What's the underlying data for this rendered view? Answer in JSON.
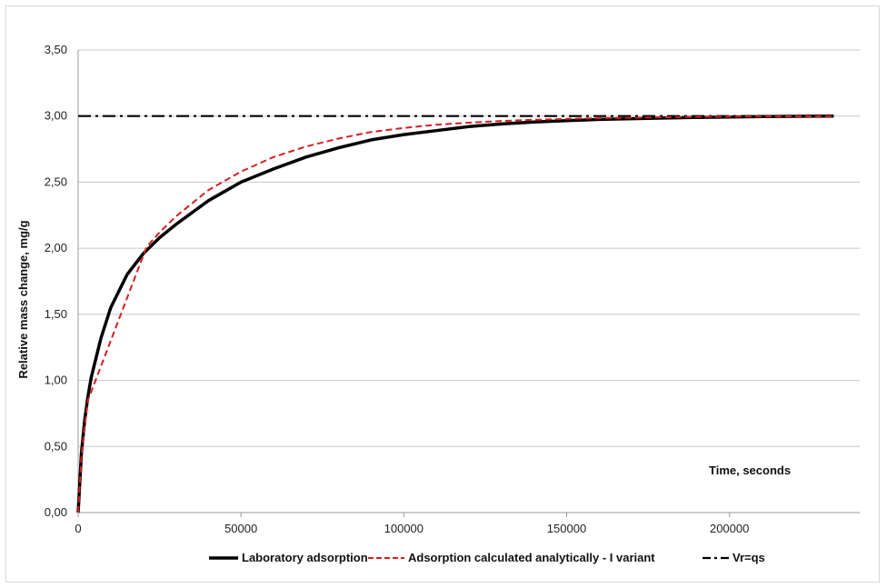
{
  "chart_data": {
    "type": "line",
    "title": "",
    "xlabel": "Time, seconds",
    "ylabel": "Relative mass change, mg/g",
    "xlim": [
      0,
      240000
    ],
    "ylim": [
      0,
      3.5
    ],
    "x_ticks": [
      0,
      50000,
      100000,
      150000,
      200000
    ],
    "x_tick_labels": [
      "0",
      "50000",
      "100000",
      "150000",
      "200000"
    ],
    "y_ticks": [
      0,
      0.5,
      1.0,
      1.5,
      2.0,
      2.5,
      3.0,
      3.5
    ],
    "y_tick_labels": [
      "0,00",
      "0,50",
      "1,00",
      "1,50",
      "2,00",
      "2,50",
      "3,00",
      "3,50"
    ],
    "grid": "horizontal",
    "legend_position": "bottom",
    "series": [
      {
        "name": "Laboratory adsorption",
        "color": "#000000",
        "style": "solid",
        "x": [
          0,
          1000,
          2000,
          3000,
          4000,
          5000,
          7000,
          10000,
          15000,
          20000,
          25000,
          30000,
          40000,
          50000,
          60000,
          70000,
          80000,
          90000,
          100000,
          110000,
          120000,
          130000,
          140000,
          150000,
          160000,
          170000,
          180000,
          190000,
          200000,
          210000,
          220000,
          232000
        ],
        "y": [
          0,
          0.45,
          0.7,
          0.88,
          1.02,
          1.12,
          1.32,
          1.55,
          1.8,
          1.96,
          2.08,
          2.18,
          2.36,
          2.5,
          2.6,
          2.69,
          2.76,
          2.82,
          2.86,
          2.89,
          2.92,
          2.94,
          2.955,
          2.965,
          2.975,
          2.98,
          2.985,
          2.99,
          2.993,
          2.996,
          2.998,
          3.0
        ]
      },
      {
        "name": "Adsorption calculated analytically - I variant",
        "color": "#d42020",
        "style": "dashed",
        "x": [
          0,
          1000,
          2000,
          3000,
          21000,
          25000,
          30000,
          40000,
          50000,
          60000,
          70000,
          80000,
          90000,
          100000,
          110000,
          120000,
          130000,
          140000,
          150000,
          160000,
          170000,
          180000,
          190000,
          200000,
          210000,
          220000,
          232000
        ],
        "y": [
          0,
          0.42,
          0.66,
          0.85,
          2.01,
          2.12,
          2.24,
          2.44,
          2.58,
          2.69,
          2.77,
          2.83,
          2.88,
          2.91,
          2.935,
          2.95,
          2.963,
          2.972,
          2.979,
          2.984,
          2.988,
          2.991,
          2.994,
          2.996,
          2.997,
          2.998,
          2.999
        ]
      },
      {
        "name": "Vr=qs",
        "color": "#000000",
        "style": "dashdot",
        "x": [
          0,
          232000
        ],
        "y": [
          3.0,
          3.0
        ]
      }
    ]
  }
}
